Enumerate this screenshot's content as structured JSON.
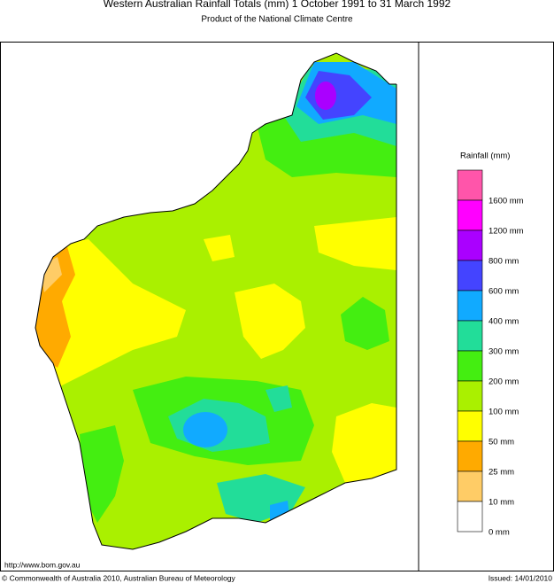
{
  "header": {
    "title": "Western Australian Rainfall Totals (mm) 1 October 1991 to 31 March 1992",
    "subtitle": "Product of the National Climate Centre"
  },
  "legend": {
    "title": "Rainfall (mm)",
    "items": [
      {
        "label": "1600 mm",
        "color": "#ff55aa"
      },
      {
        "label": "1200 mm",
        "color": "#ff00ff"
      },
      {
        "label": "800 mm",
        "color": "#aa00ff"
      },
      {
        "label": "600 mm",
        "color": "#4444ff"
      },
      {
        "label": "400 mm",
        "color": "#11aaff"
      },
      {
        "label": "300 mm",
        "color": "#22dd99"
      },
      {
        "label": "200 mm",
        "color": "#44ee11"
      },
      {
        "label": "100 mm",
        "color": "#aaf000"
      },
      {
        "label": "50 mm",
        "color": "#ffff00"
      },
      {
        "label": "25 mm",
        "color": "#ffaa00"
      },
      {
        "label": "10 mm",
        "color": "#ffcc66"
      },
      {
        "label": "0 mm",
        "color": "#ffffff"
      }
    ]
  },
  "footer": {
    "url": "http://www.bom.gov.au",
    "copyright": "© Commonwealth of Australia 2010, Australian Bureau of Meteorology",
    "issued": "Issued: 14/01/2010"
  }
}
